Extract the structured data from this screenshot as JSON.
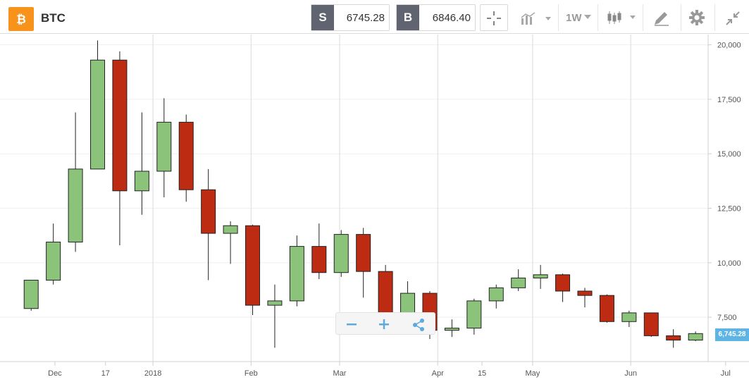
{
  "toolbar": {
    "symbol": "BTC",
    "sell_label": "S",
    "sell_price": "6745.28",
    "buy_label": "B",
    "buy_price": "6846.40",
    "timeframe": "1W"
  },
  "colors": {
    "up": "#8cc37a",
    "down": "#bd2b12",
    "coin": "#f7931a",
    "accent": "#5eb4e4"
  },
  "chart_data": {
    "type": "candlestick",
    "title": "",
    "xlabel": "",
    "ylabel": "",
    "ylim": [
      4000,
      20600
    ],
    "y_ticks": [
      "7,500",
      "10,000",
      "12,500",
      "15,000",
      "17,500",
      "20,000"
    ],
    "x_ticks": [
      "Dec",
      "17",
      "2018",
      "Feb",
      "Mar",
      "Apr",
      "15",
      "May",
      "Jun",
      "Jul"
    ],
    "current_price_label": "6,745.28",
    "x_start_date": "2017-11-23",
    "candles": [
      {
        "date": "2017-11-20",
        "open": 7900,
        "close": 9200,
        "high": 9200,
        "low": 7800
      },
      {
        "date": "2017-11-27",
        "open": 9200,
        "close": 10950,
        "high": 11800,
        "low": 9000
      },
      {
        "date": "2017-12-04",
        "open": 10950,
        "close": 14300,
        "high": 16900,
        "low": 10500
      },
      {
        "date": "2017-12-11",
        "open": 14300,
        "close": 19300,
        "high": 20200,
        "low": 14300
      },
      {
        "date": "2017-12-18",
        "open": 19300,
        "close": 13300,
        "high": 19700,
        "low": 10800
      },
      {
        "date": "2017-12-25",
        "open": 13300,
        "close": 14200,
        "high": 16900,
        "low": 12200
      },
      {
        "date": "2018-01-01",
        "open": 14200,
        "close": 16450,
        "high": 17550,
        "low": 13000
      },
      {
        "date": "2018-01-08",
        "open": 16450,
        "close": 13350,
        "high": 16800,
        "low": 12800
      },
      {
        "date": "2018-01-15",
        "open": 13350,
        "close": 11350,
        "high": 14300,
        "low": 9200
      },
      {
        "date": "2018-01-22",
        "open": 11350,
        "close": 11700,
        "high": 11900,
        "low": 9950
      },
      {
        "date": "2018-01-29",
        "open": 11700,
        "close": 8050,
        "high": 11750,
        "low": 7600
      },
      {
        "date": "2018-02-05",
        "open": 8050,
        "close": 8250,
        "high": 9000,
        "low": 6100
      },
      {
        "date": "2018-02-12",
        "open": 8250,
        "close": 10750,
        "high": 11250,
        "low": 8000
      },
      {
        "date": "2018-02-19",
        "open": 10750,
        "close": 9550,
        "high": 11800,
        "low": 9250
      },
      {
        "date": "2018-02-26",
        "open": 9550,
        "close": 11300,
        "high": 11500,
        "low": 9350
      },
      {
        "date": "2018-03-05",
        "open": 11300,
        "close": 9600,
        "high": 11600,
        "low": 8400
      },
      {
        "date": "2018-03-12",
        "open": 9600,
        "close": 7700,
        "high": 9900,
        "low": 7400
      },
      {
        "date": "2018-03-19",
        "open": 7700,
        "close": 8600,
        "high": 9150,
        "low": 7700
      },
      {
        "date": "2018-03-26",
        "open": 8600,
        "close": 6900,
        "high": 8700,
        "low": 6500
      },
      {
        "date": "2018-04-02",
        "open": 6900,
        "close": 7000,
        "high": 7400,
        "low": 6600
      },
      {
        "date": "2018-04-09",
        "open": 7000,
        "close": 8250,
        "high": 8350,
        "low": 6700
      },
      {
        "date": "2018-04-16",
        "open": 8250,
        "close": 8850,
        "high": 9000,
        "low": 7900
      },
      {
        "date": "2018-04-23",
        "open": 8850,
        "close": 9300,
        "high": 9700,
        "low": 8700
      },
      {
        "date": "2018-04-30",
        "open": 9300,
        "close": 9450,
        "high": 9900,
        "low": 8800
      },
      {
        "date": "2018-05-07",
        "open": 9450,
        "close": 8700,
        "high": 9500,
        "low": 8200
      },
      {
        "date": "2018-05-14",
        "open": 8700,
        "close": 8500,
        "high": 8850,
        "low": 7950
      },
      {
        "date": "2018-05-21",
        "open": 8500,
        "close": 7300,
        "high": 8550,
        "low": 7250
      },
      {
        "date": "2018-05-28",
        "open": 7300,
        "close": 7700,
        "high": 7800,
        "low": 7050
      },
      {
        "date": "2018-06-04",
        "open": 7700,
        "close": 6650,
        "high": 7700,
        "low": 6600
      },
      {
        "date": "2018-06-11",
        "open": 6650,
        "close": 6450,
        "high": 6950,
        "low": 6100
      },
      {
        "date": "2018-06-18",
        "open": 6450,
        "close": 6750,
        "high": 6850,
        "low": 6400
      }
    ]
  }
}
